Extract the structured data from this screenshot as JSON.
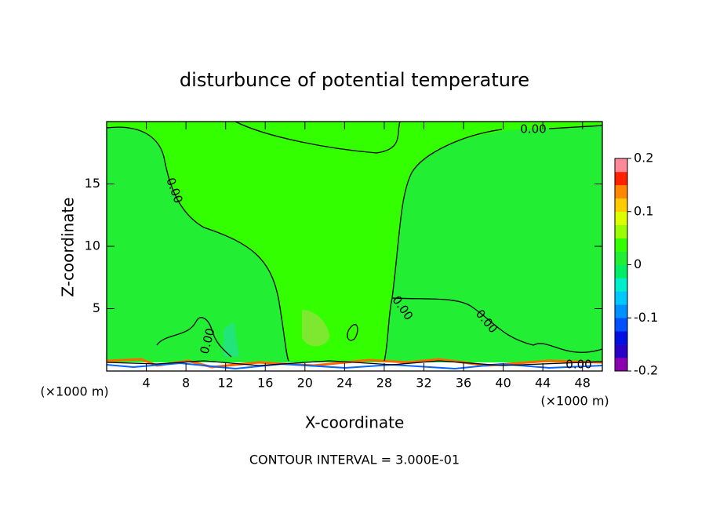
{
  "chart_data": {
    "type": "contour",
    "title": "disturbunce of potential temperature",
    "x_label": "X-coordinate",
    "y_label": "Z-coordinate",
    "x_unit_left": "(×1000 m)",
    "x_unit_right": "(×1000 m)",
    "annotation": "CONTOUR INTERVAL = 3.000E-01",
    "xlim": [
      0,
      50
    ],
    "xticks": [
      4,
      8,
      12,
      16,
      20,
      24,
      28,
      32,
      36,
      40,
      44,
      48
    ],
    "ylim": [
      0,
      20
    ],
    "yticks": [
      5,
      10,
      15
    ],
    "contour_labels": [
      "0.00",
      "0.00",
      "0.00",
      "0.00",
      "0.00",
      "0.00"
    ],
    "colorbar": {
      "lim": [
        -0.2,
        0.2
      ],
      "ticks": [
        -0.2,
        -0.1,
        0,
        0.1,
        0.2
      ],
      "colors": [
        "#8a00b0",
        "#2a00c8",
        "#0010e0",
        "#0050ff",
        "#0090ff",
        "#00c8ff",
        "#00eecc",
        "#00ee66",
        "#22ee33",
        "#33ff00",
        "#99ff00",
        "#ddff00",
        "#ffcc00",
        "#ff8800",
        "#ff2200",
        "#ff8899"
      ]
    }
  }
}
